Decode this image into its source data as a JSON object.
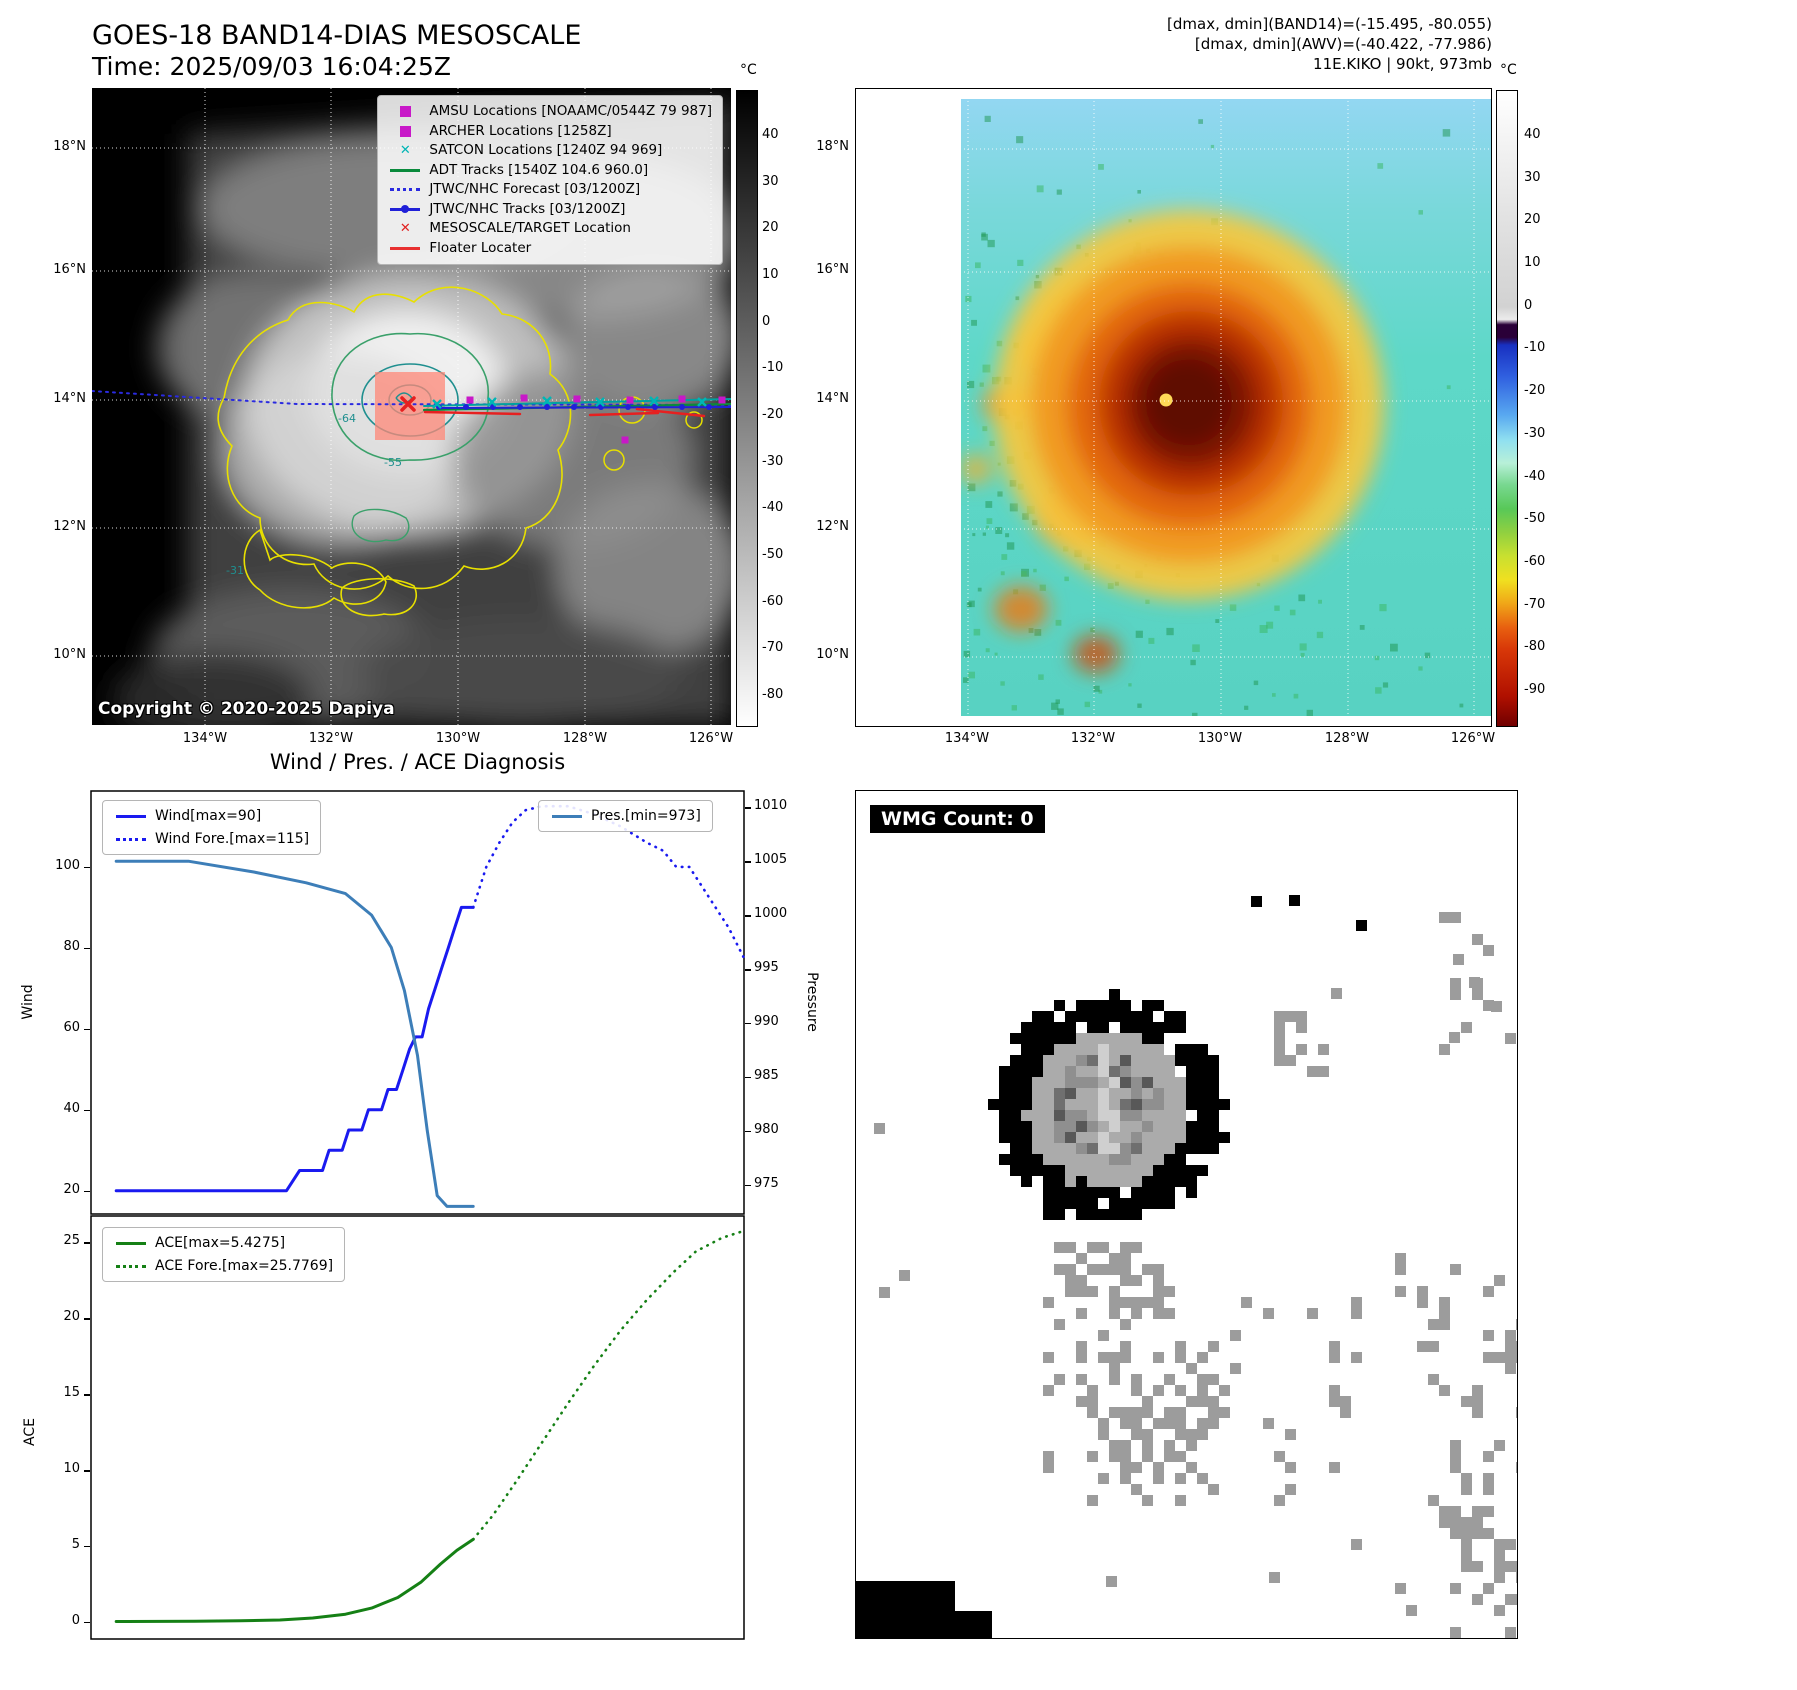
{
  "panel_tl": {
    "title": "GOES-18 BAND14-DIAS MESOSCALE",
    "subtitle": "Time: 2025/09/03 16:04:25Z",
    "copyright": "Copyright © 2020-2025 Dapiya",
    "legend": [
      {
        "label": "AMSU Locations [NOAAMC/0544Z 79 987]",
        "marker": "square",
        "color": "#c818c8"
      },
      {
        "label": "ARCHER Locations [1258Z]",
        "marker": "square",
        "color": "#c818c8"
      },
      {
        "label": "SATCON Locations [1240Z 94 969]",
        "marker": "x",
        "color": "#00b5b5"
      },
      {
        "label": "ADT Tracks [1540Z 104.6 960.0]",
        "marker": "line",
        "color": "#0a8a3c"
      },
      {
        "label": "JTWC/NHC Forecast [03/1200Z]",
        "marker": "dotted",
        "color": "#2a2ae0"
      },
      {
        "label": "JTWC/NHC Tracks [03/1200Z]",
        "marker": "line-dot",
        "color": "#2020d8"
      },
      {
        "label": "MESOSCALE/TARGET Location",
        "marker": "x",
        "color": "#e02020"
      },
      {
        "label": "Floater Locater",
        "marker": "line",
        "color": "#e83030"
      }
    ],
    "lat_labels": [
      "18°N",
      "16°N",
      "14°N",
      "12°N",
      "10°N"
    ],
    "lon_labels": [
      "134°W",
      "132°W",
      "130°W",
      "128°W",
      "126°W"
    ],
    "colorbar": {
      "unit": "°C",
      "ticks": [
        40,
        30,
        20,
        10,
        0,
        -10,
        -20,
        -30,
        -40,
        -50,
        -60,
        -70,
        -80
      ]
    },
    "contour_labels": [
      "-64",
      "-55",
      "-31"
    ]
  },
  "panel_tr": {
    "header_line1": "[dmax, dmin](BAND14)=(-15.495, -80.055)",
    "header_line2": "[dmax, dmin](AWV)=(-40.422, -77.986)",
    "header_line3": "11E.KIKO | 90kt, 973mb",
    "lat_labels": [
      "18°N",
      "16°N",
      "14°N",
      "12°N",
      "10°N"
    ],
    "lon_labels": [
      "134°W",
      "132°W",
      "130°W",
      "128°W",
      "126°W"
    ],
    "colorbar": {
      "unit": "°C",
      "ticks": [
        40,
        30,
        20,
        10,
        0,
        -10,
        -20,
        -30,
        -40,
        -50,
        -60,
        -70,
        -80,
        -90
      ]
    }
  },
  "chart_data": [
    {
      "type": "line",
      "title": "Wind / Pres. / ACE Diagnosis",
      "ylabel_left": "Wind",
      "ylabel_right": "Pressure",
      "wind_ylim": [
        14,
        119
      ],
      "pressure_ylim": [
        972.2,
        1011.6
      ],
      "yticks_wind": [
        20,
        40,
        60,
        80,
        100
      ],
      "yticks_pressure": [
        975,
        980,
        985,
        990,
        995,
        1000,
        1005,
        1010
      ],
      "legend_position": "upper-left and upper-right",
      "series": [
        {
          "name": "Wind[max=90]",
          "axis": "wind",
          "style": "solid",
          "color": "#1a1af0",
          "points": [
            [
              0.04,
              20
            ],
            [
              0.3,
              20
            ],
            [
              0.32,
              25
            ],
            [
              0.355,
              25
            ],
            [
              0.365,
              30
            ],
            [
              0.385,
              30
            ],
            [
              0.395,
              35
            ],
            [
              0.415,
              35
            ],
            [
              0.425,
              40
            ],
            [
              0.445,
              40
            ],
            [
              0.455,
              45
            ],
            [
              0.468,
              45
            ],
            [
              0.478,
              50
            ],
            [
              0.488,
              55
            ],
            [
              0.497,
              58
            ],
            [
              0.507,
              58
            ],
            [
              0.517,
              65
            ],
            [
              0.527,
              70
            ],
            [
              0.537,
              75
            ],
            [
              0.547,
              80
            ],
            [
              0.557,
              85
            ],
            [
              0.567,
              90
            ],
            [
              0.585,
              90
            ]
          ]
        },
        {
          "name": "Wind Fore.[max=115]",
          "axis": "wind",
          "style": "dotted",
          "color": "#1a1af0",
          "points": [
            [
              0.585,
              90
            ],
            [
              0.605,
              100
            ],
            [
              0.625,
              106
            ],
            [
              0.645,
              111
            ],
            [
              0.665,
              114
            ],
            [
              0.69,
              115
            ],
            [
              0.73,
              115
            ],
            [
              0.77,
              113
            ],
            [
              0.81,
              110
            ],
            [
              0.85,
              106
            ],
            [
              0.875,
              104
            ],
            [
              0.895,
              100
            ],
            [
              0.915,
              100
            ],
            [
              0.935,
              95
            ],
            [
              0.955,
              90
            ],
            [
              0.975,
              85
            ],
            [
              1.0,
              77
            ]
          ]
        },
        {
          "name": "Pres.[min=973]",
          "axis": "pressure",
          "style": "solid",
          "color": "#3d7eb8",
          "points": [
            [
              0.04,
              1005
            ],
            [
              0.15,
              1005
            ],
            [
              0.25,
              1004
            ],
            [
              0.33,
              1003
            ],
            [
              0.39,
              1002
            ],
            [
              0.43,
              1000
            ],
            [
              0.46,
              997
            ],
            [
              0.48,
              993
            ],
            [
              0.5,
              987
            ],
            [
              0.515,
              980
            ],
            [
              0.53,
              974
            ],
            [
              0.545,
              973
            ],
            [
              0.585,
              973
            ]
          ]
        }
      ]
    },
    {
      "type": "line",
      "ylabel_left": "ACE",
      "ace_ylim": [
        -1.2,
        26.8
      ],
      "yticks_ace": [
        0,
        5,
        10,
        15,
        20,
        25
      ],
      "series": [
        {
          "name": "ACE[max=5.4275]",
          "axis": "ace",
          "style": "solid",
          "color": "#158015",
          "points": [
            [
              0.04,
              0.02
            ],
            [
              0.16,
              0.03
            ],
            [
              0.23,
              0.07
            ],
            [
              0.29,
              0.12
            ],
            [
              0.34,
              0.25
            ],
            [
              0.39,
              0.5
            ],
            [
              0.43,
              0.9
            ],
            [
              0.47,
              1.6
            ],
            [
              0.505,
              2.6
            ],
            [
              0.535,
              3.8
            ],
            [
              0.56,
              4.7
            ],
            [
              0.585,
              5.43
            ]
          ]
        },
        {
          "name": "ACE Fore.[max=25.7769]",
          "axis": "ace",
          "style": "dotted",
          "color": "#158015",
          "points": [
            [
              0.585,
              5.43
            ],
            [
              0.615,
              7.0
            ],
            [
              0.65,
              9.2
            ],
            [
              0.69,
              11.8
            ],
            [
              0.73,
              14.4
            ],
            [
              0.77,
              16.9
            ],
            [
              0.81,
              19.2
            ],
            [
              0.85,
              21.2
            ],
            [
              0.89,
              23.0
            ],
            [
              0.925,
              24.4
            ],
            [
              0.965,
              25.3
            ],
            [
              1.0,
              25.78
            ]
          ]
        }
      ]
    }
  ],
  "panel_br": {
    "wmg_label": "WMG Count: 0"
  }
}
